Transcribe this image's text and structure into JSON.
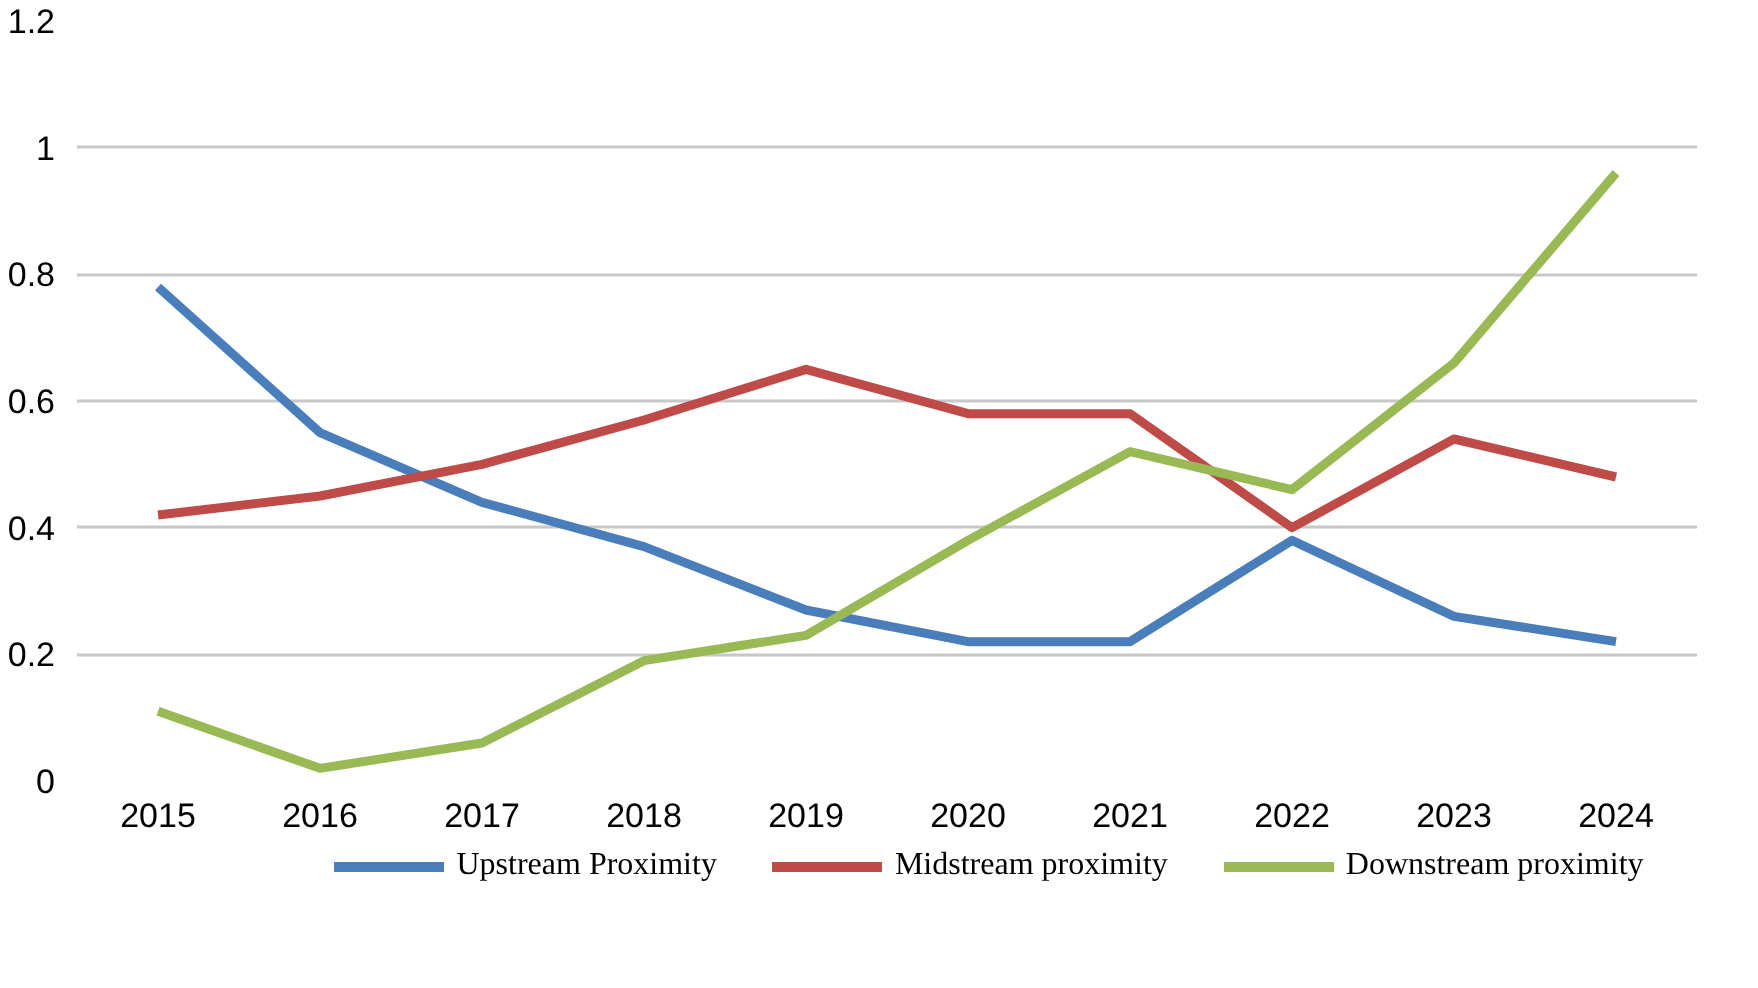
{
  "chart_data": {
    "type": "line",
    "categories": [
      "2015",
      "2016",
      "2017",
      "2018",
      "2019",
      "2020",
      "2021",
      "2022",
      "2023",
      "2024"
    ],
    "ylim": [
      0,
      1.2
    ],
    "yticks": [
      0,
      {
        "value": 0.2,
        "label": "0.2"
      },
      {
        "value": 0.4,
        "label": "0.4"
      },
      {
        "value": 0.6,
        "label": "0.6"
      },
      {
        "value": 0.8,
        "label": "0.8"
      },
      1,
      {
        "value": 1.2,
        "label": "1.2"
      }
    ],
    "grid": "y",
    "legend": "bottom",
    "line_style": "solid",
    "marker": "none",
    "series": [
      {
        "name": "Upstream Proximity",
        "color": "#4a7ebb",
        "values": [
          0.78,
          0.55,
          0.44,
          0.37,
          0.27,
          0.22,
          0.22,
          0.38,
          0.26,
          0.22
        ]
      },
      {
        "name": "Midstream proximity",
        "color": "#be4b48",
        "values": [
          0.42,
          0.45,
          0.5,
          0.57,
          0.65,
          0.58,
          0.58,
          0.4,
          0.54,
          0.48
        ]
      },
      {
        "name": "Downstream proximity",
        "color": "#98b954",
        "values": [
          0.11,
          0.02,
          0.06,
          0.19,
          0.23,
          0.38,
          0.52,
          0.46,
          0.66,
          0.96
        ]
      }
    ]
  }
}
